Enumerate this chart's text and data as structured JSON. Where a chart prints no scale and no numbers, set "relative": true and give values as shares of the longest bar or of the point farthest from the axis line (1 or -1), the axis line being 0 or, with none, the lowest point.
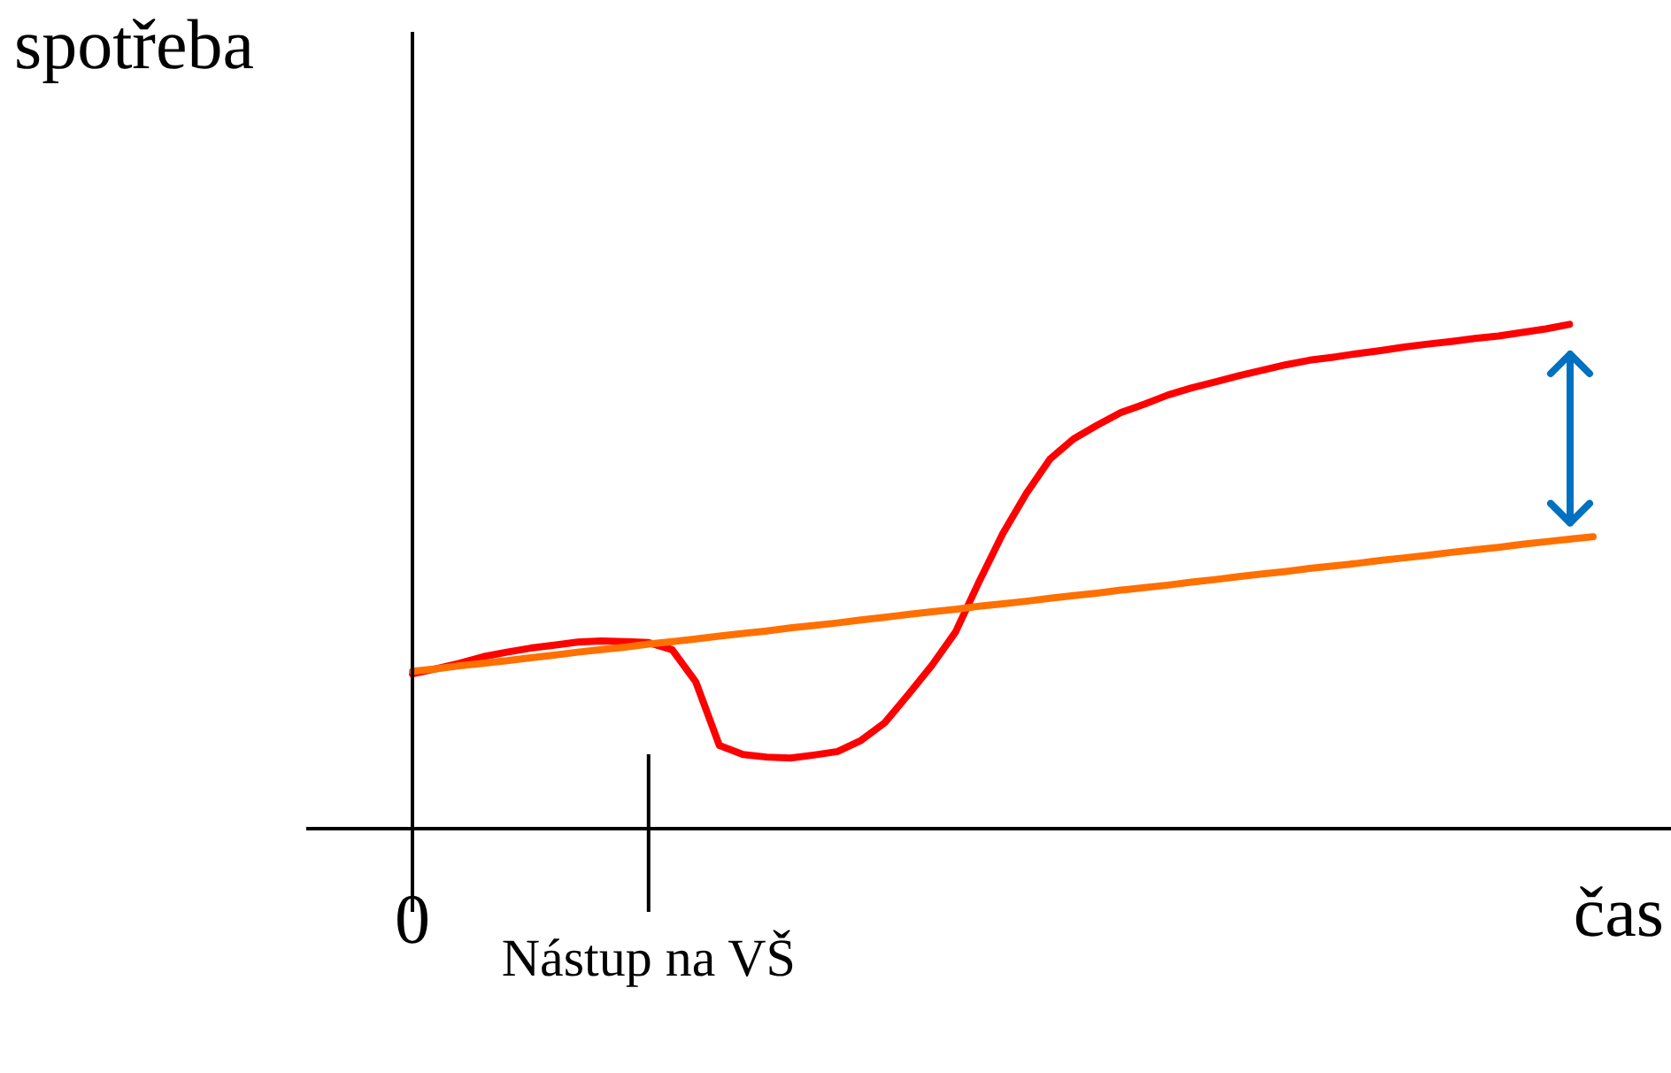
{
  "chart_data": {
    "type": "line",
    "relative": true,
    "xlabel": "čas",
    "ylabel": "spotřeba",
    "legend": false,
    "marker": "none",
    "ref_lines": [
      {
        "axis": "x",
        "value": "Nástup na VŠ",
        "color": "#000000"
      }
    ],
    "line_style": "solid",
    "categories": [
      "0",
      null,
      null,
      null,
      null,
      null,
      null,
      null,
      null,
      null,
      "Nástup na VŠ",
      null,
      null,
      null,
      null,
      null,
      null,
      null,
      null,
      null,
      null,
      null,
      null,
      null,
      null,
      null,
      null,
      null,
      null,
      null,
      null,
      null,
      null,
      null,
      null,
      null,
      null,
      null,
      null,
      null,
      null,
      null,
      null,
      null,
      null,
      null,
      null,
      null,
      null,
      null,
      null
    ],
    "series": [
      {
        "color": "#ff7000",
        "values": [
          0.312,
          0.317,
          0.323,
          0.328,
          0.333,
          0.339,
          0.344,
          0.35,
          0.355,
          0.36,
          0.366,
          0.371,
          0.376,
          0.382,
          0.387,
          0.392,
          0.398,
          0.403,
          0.408,
          0.414,
          0.419,
          0.425,
          0.43,
          0.435,
          0.441,
          0.446,
          0.451,
          0.457,
          0.462,
          0.467,
          0.473,
          0.478,
          0.483,
          0.489,
          0.494,
          0.5,
          0.505,
          0.51,
          0.516,
          0.521,
          0.526,
          0.532,
          0.537,
          0.542,
          0.548,
          0.553,
          0.558,
          0.564,
          0.569,
          0.574,
          0.579
        ]
      },
      {
        "color": "#ff0000",
        "values": [
          0.307,
          0.317,
          0.328,
          0.341,
          0.35,
          0.358,
          0.364,
          0.37,
          0.372,
          0.371,
          0.369,
          0.355,
          0.291,
          0.165,
          0.147,
          0.142,
          0.14,
          0.146,
          0.153,
          0.175,
          0.21,
          0.266,
          0.324,
          0.39,
          0.49,
          0.585,
          0.665,
          0.733,
          0.773,
          0.8,
          0.825,
          0.842,
          0.86,
          0.874,
          0.886,
          0.898,
          0.909,
          0.92,
          0.929,
          0.935,
          0.942,
          0.948,
          0.955,
          0.961,
          0.966,
          0.972,
          0.977,
          0.984,
          0.991,
          1,
          null
        ]
      }
    ]
  }
}
